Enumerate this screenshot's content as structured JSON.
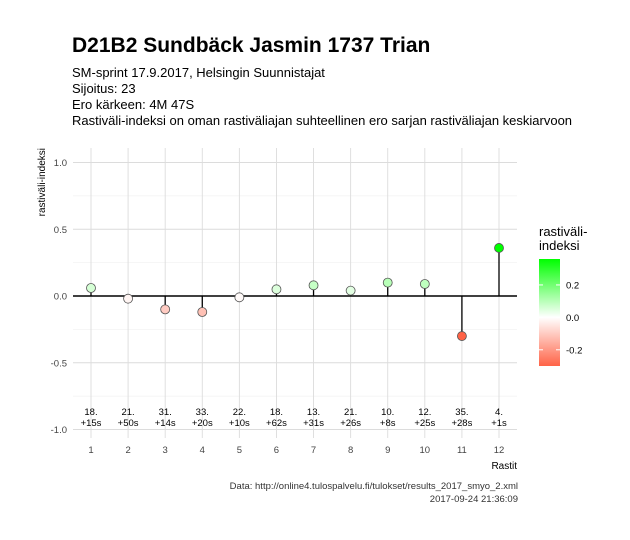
{
  "header": {
    "title": "D21B2 Sundbäck Jasmin 1737 Trian",
    "subtitle_lines": [
      "SM-sprint 17.9.2017, Helsingin Suunnistajat",
      "Sijoitus: 23",
      "Ero kärkeen: 4M 47S",
      "Rastiväli-indeksi on oman rastiväliajan suhteellinen ero sarjan rastiväliajan keskiarvoon"
    ]
  },
  "caption": {
    "line1": "Data: http://online4.tulospalvelu.fi/tulokset/results_2017_smyo_2.xml",
    "line2": "2017-09-24 21:36:09"
  },
  "chart_data": {
    "type": "scatter",
    "x": [
      1,
      2,
      3,
      4,
      5,
      6,
      7,
      8,
      9,
      10,
      11,
      12
    ],
    "values": [
      0.06,
      -0.02,
      -0.1,
      -0.12,
      -0.01,
      0.05,
      0.08,
      0.04,
      0.1,
      0.09,
      -0.3,
      0.36
    ],
    "annotations": [
      "18.\n+15s",
      "21.\n+50s",
      "31.\n+14s",
      "33.\n+20s",
      "22.\n+10s",
      "18.\n+62s",
      "13.\n+31s",
      "21.\n+26s",
      "10.\n+8s",
      "12.\n+25s",
      "35.\n+28s",
      "4.\n+1s"
    ],
    "xlabel": "Rastit",
    "ylabel": "rastiväli-indeksi",
    "ylim": [
      -1.05,
      1.1
    ],
    "yticks": [
      -1.0,
      -0.5,
      0.0,
      0.5,
      1.0
    ],
    "ytick_labels": [
      "-1.0",
      "-0.5",
      "0.0",
      "0.5",
      "1.0"
    ],
    "xtick_labels": [
      "1",
      "2",
      "3",
      "4",
      "5",
      "6",
      "7",
      "8",
      "9",
      "10",
      "11",
      "12"
    ],
    "grid": true,
    "segments_to_zero": true,
    "legend": {
      "title": "rastiväli-\nindeksi",
      "placement": "right",
      "labels": [
        "0.2",
        "0.0",
        "-0.2"
      ],
      "breaks": [
        0.2,
        0.0,
        -0.2
      ],
      "range": [
        -0.3,
        0.36
      ],
      "color_high": "#00ff00",
      "color_mid": "#ffffff",
      "color_low": "#ff6347"
    }
  }
}
